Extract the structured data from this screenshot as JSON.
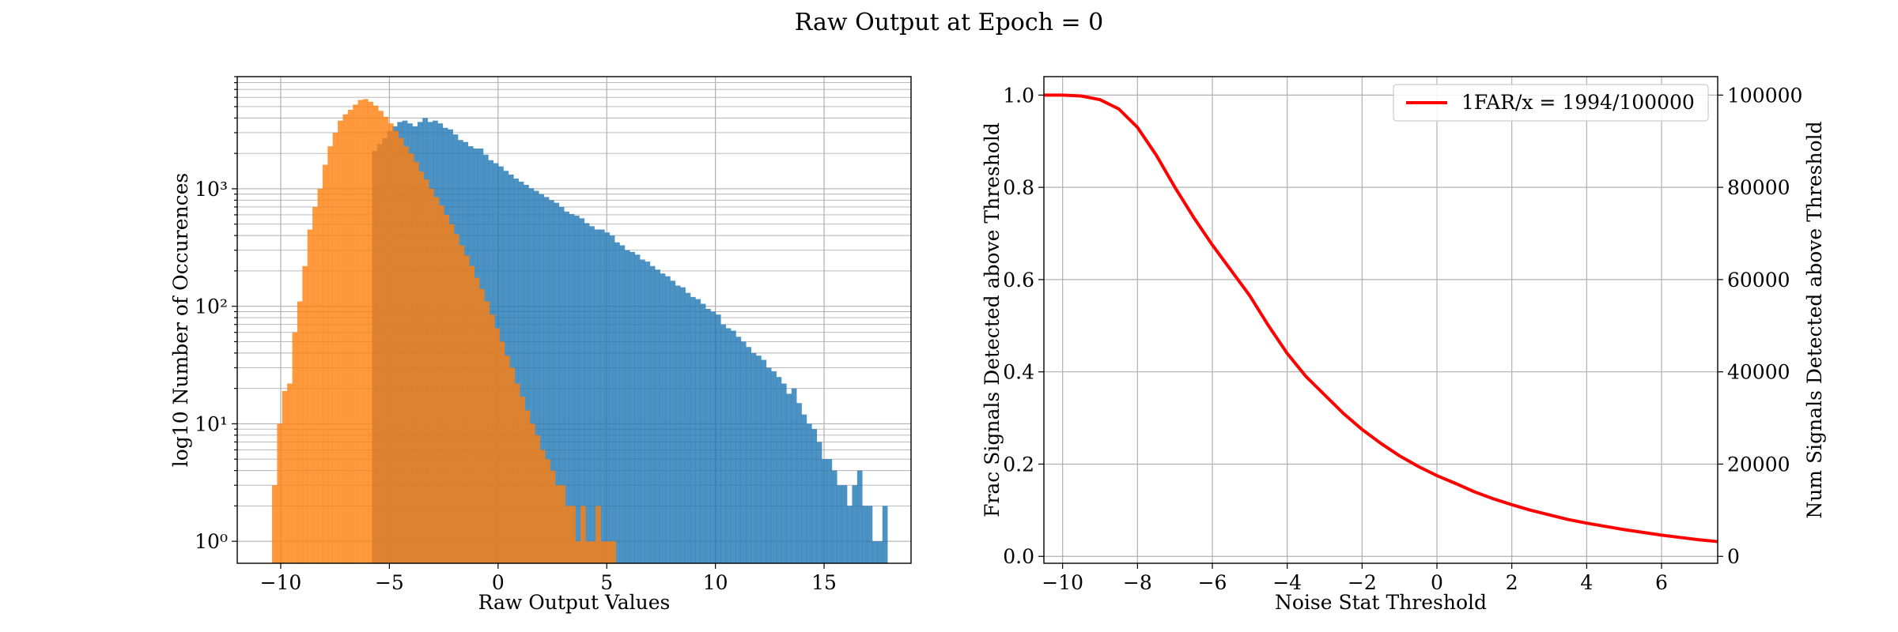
{
  "suptitle": "Raw Output at Epoch = 0",
  "colors": {
    "noise": "#1f77b4",
    "signal": "#ff7f0e",
    "curve": "#ff0000",
    "grid": "#b0b0b0"
  },
  "chart_data": [
    {
      "type": "bar",
      "subtype": "histogram",
      "xlabel": "Raw Output Values",
      "ylabel": "log10 Number of Occurences",
      "xlim": [
        -12.0,
        19.0
      ],
      "ylim": [
        0.65,
        9000
      ],
      "yscale": "log",
      "grid": true,
      "x_ticks": [
        -10,
        -5,
        0,
        5,
        10,
        15
      ],
      "y_ticks": [
        {
          "value": 1,
          "label": "10⁰"
        },
        {
          "value": 10,
          "label": "10¹"
        },
        {
          "value": 100,
          "label": "10²"
        },
        {
          "value": 1000,
          "label": "10³"
        }
      ],
      "series": [
        {
          "color": "#1f77b4",
          "bin_start": -5.8,
          "bin_width": 0.2325,
          "values": [
            2100,
            2400,
            2700,
            3100,
            3400,
            3700,
            3800,
            3600,
            3400,
            3700,
            4000,
            3700,
            3800,
            3600,
            3300,
            3200,
            2900,
            2600,
            2500,
            2300,
            2200,
            2200,
            1950,
            1750,
            1650,
            1550,
            1420,
            1320,
            1220,
            1150,
            1080,
            1010,
            960,
            900,
            850,
            800,
            760,
            700,
            640,
            610,
            590,
            560,
            510,
            480,
            450,
            450,
            425,
            400,
            350,
            330,
            300,
            290,
            275,
            250,
            240,
            220,
            205,
            190,
            180,
            165,
            150,
            145,
            130,
            120,
            115,
            105,
            95,
            90,
            85,
            70,
            65,
            62,
            55,
            50,
            45,
            40,
            38,
            35,
            30,
            28,
            25,
            22,
            18,
            20,
            15,
            12,
            10,
            9,
            7,
            5,
            5,
            4,
            3,
            3,
            2,
            3,
            4,
            2,
            2,
            1,
            1,
            2
          ]
        },
        {
          "color": "#ff7f0e",
          "bin_start": -10.4,
          "bin_width": 0.2326,
          "values": [
            3,
            10,
            19,
            22,
            60,
            110,
            220,
            450,
            700,
            1000,
            1600,
            2300,
            3000,
            3800,
            4300,
            4700,
            5200,
            5700,
            5800,
            5500,
            5100,
            4600,
            4100,
            3600,
            3100,
            2700,
            2300,
            2000,
            1700,
            1400,
            1200,
            1000,
            850,
            720,
            600,
            500,
            410,
            330,
            270,
            220,
            175,
            140,
            110,
            85,
            65,
            50,
            38,
            30,
            22,
            17,
            13,
            10,
            8,
            6,
            5,
            4,
            3,
            3,
            2,
            2,
            1,
            2,
            1,
            1,
            2,
            1,
            1,
            1
          ]
        }
      ]
    },
    {
      "type": "line",
      "xlabel": "Noise Stat Threshold",
      "ylabel": "Frac Signals Detected above Threshold",
      "y2label": "Num Signals Detected above Threshold",
      "xlim": [
        -10.5,
        7.5
      ],
      "ylim": [
        -0.015,
        1.04
      ],
      "y2lim": [
        -1500,
        104000
      ],
      "grid": true,
      "x_ticks": [
        -10,
        -8,
        -6,
        -4,
        -2,
        0,
        2,
        4,
        6
      ],
      "y_ticks": [
        0.0,
        0.2,
        0.4,
        0.6,
        0.8,
        1.0
      ],
      "y2_ticks": [
        0,
        20000,
        40000,
        60000,
        80000,
        100000
      ],
      "legend_position": "top-right",
      "series": [
        {
          "name": "1FAR/x = 1994/100000",
          "color": "#ff0000",
          "x": [
            -10.5,
            -10,
            -9.5,
            -9,
            -8.5,
            -8,
            -7.5,
            -7,
            -6.5,
            -6,
            -5.5,
            -5,
            -4.5,
            -4,
            -3.5,
            -3,
            -2.5,
            -2,
            -1.5,
            -1,
            -0.5,
            0,
            0.5,
            1,
            1.5,
            2,
            2.5,
            3,
            3.5,
            4,
            4.5,
            5,
            5.5,
            6,
            6.5,
            7,
            7.5
          ],
          "y": [
            1.0,
            1.0,
            0.998,
            0.99,
            0.97,
            0.93,
            0.87,
            0.8,
            0.735,
            0.675,
            0.62,
            0.565,
            0.5,
            0.44,
            0.39,
            0.35,
            0.31,
            0.275,
            0.245,
            0.218,
            0.195,
            0.175,
            0.158,
            0.14,
            0.125,
            0.112,
            0.1,
            0.09,
            0.08,
            0.072,
            0.065,
            0.058,
            0.052,
            0.046,
            0.041,
            0.036,
            0.032
          ]
        }
      ]
    }
  ]
}
